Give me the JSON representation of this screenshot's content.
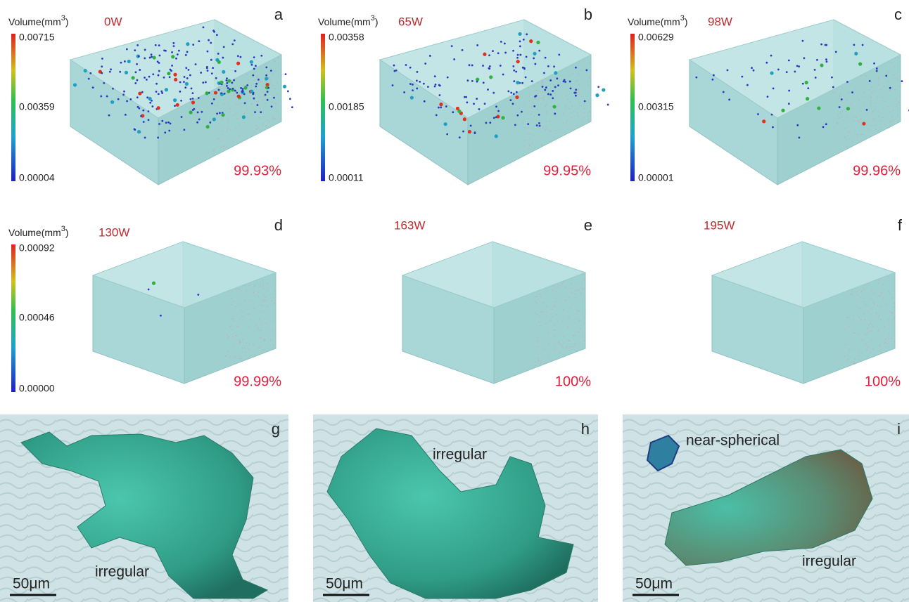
{
  "panels": [
    {
      "letter": "a",
      "power": "0W",
      "density": "99.93%",
      "colorbar": {
        "title": {
          "base": "Volume(mm",
          "sup": "3",
          "end": ")"
        },
        "ticks": [
          "0.00715",
          "0.00359",
          "0.00004"
        ]
      }
    },
    {
      "letter": "b",
      "power": "65W",
      "density": "99.95%",
      "colorbar": {
        "title": {
          "base": "Volume(mm",
          "sup": "3",
          "end": ")"
        },
        "ticks": [
          "0.00358",
          "0.00185",
          "0.00011"
        ]
      }
    },
    {
      "letter": "c",
      "power": "98W",
      "density": "99.96%",
      "colorbar": {
        "title": {
          "base": "Volume(mm",
          "sup": "3",
          "end": ")"
        },
        "ticks": [
          "0.00629",
          "0.00315",
          "0.00001"
        ]
      }
    },
    {
      "letter": "d",
      "power": "130W",
      "density": "99.99%",
      "colorbar": {
        "title": {
          "base": "Volume(mm",
          "sup": "3",
          "end": ")"
        },
        "ticks": [
          "0.00092",
          "0.00046",
          "0.00000"
        ]
      }
    },
    {
      "letter": "e",
      "power": "163W",
      "density": "100%"
    },
    {
      "letter": "f",
      "power": "195W",
      "density": "100%"
    }
  ],
  "morphology": [
    {
      "letter": "g",
      "labels": [
        "irregular"
      ],
      "scale_bar": "50μm"
    },
    {
      "letter": "h",
      "labels": [
        "irregular"
      ],
      "scale_bar": "50μm"
    },
    {
      "letter": "i",
      "labels": [
        "near-spherical",
        "irregular"
      ],
      "scale_bar": "50μm"
    }
  ]
}
